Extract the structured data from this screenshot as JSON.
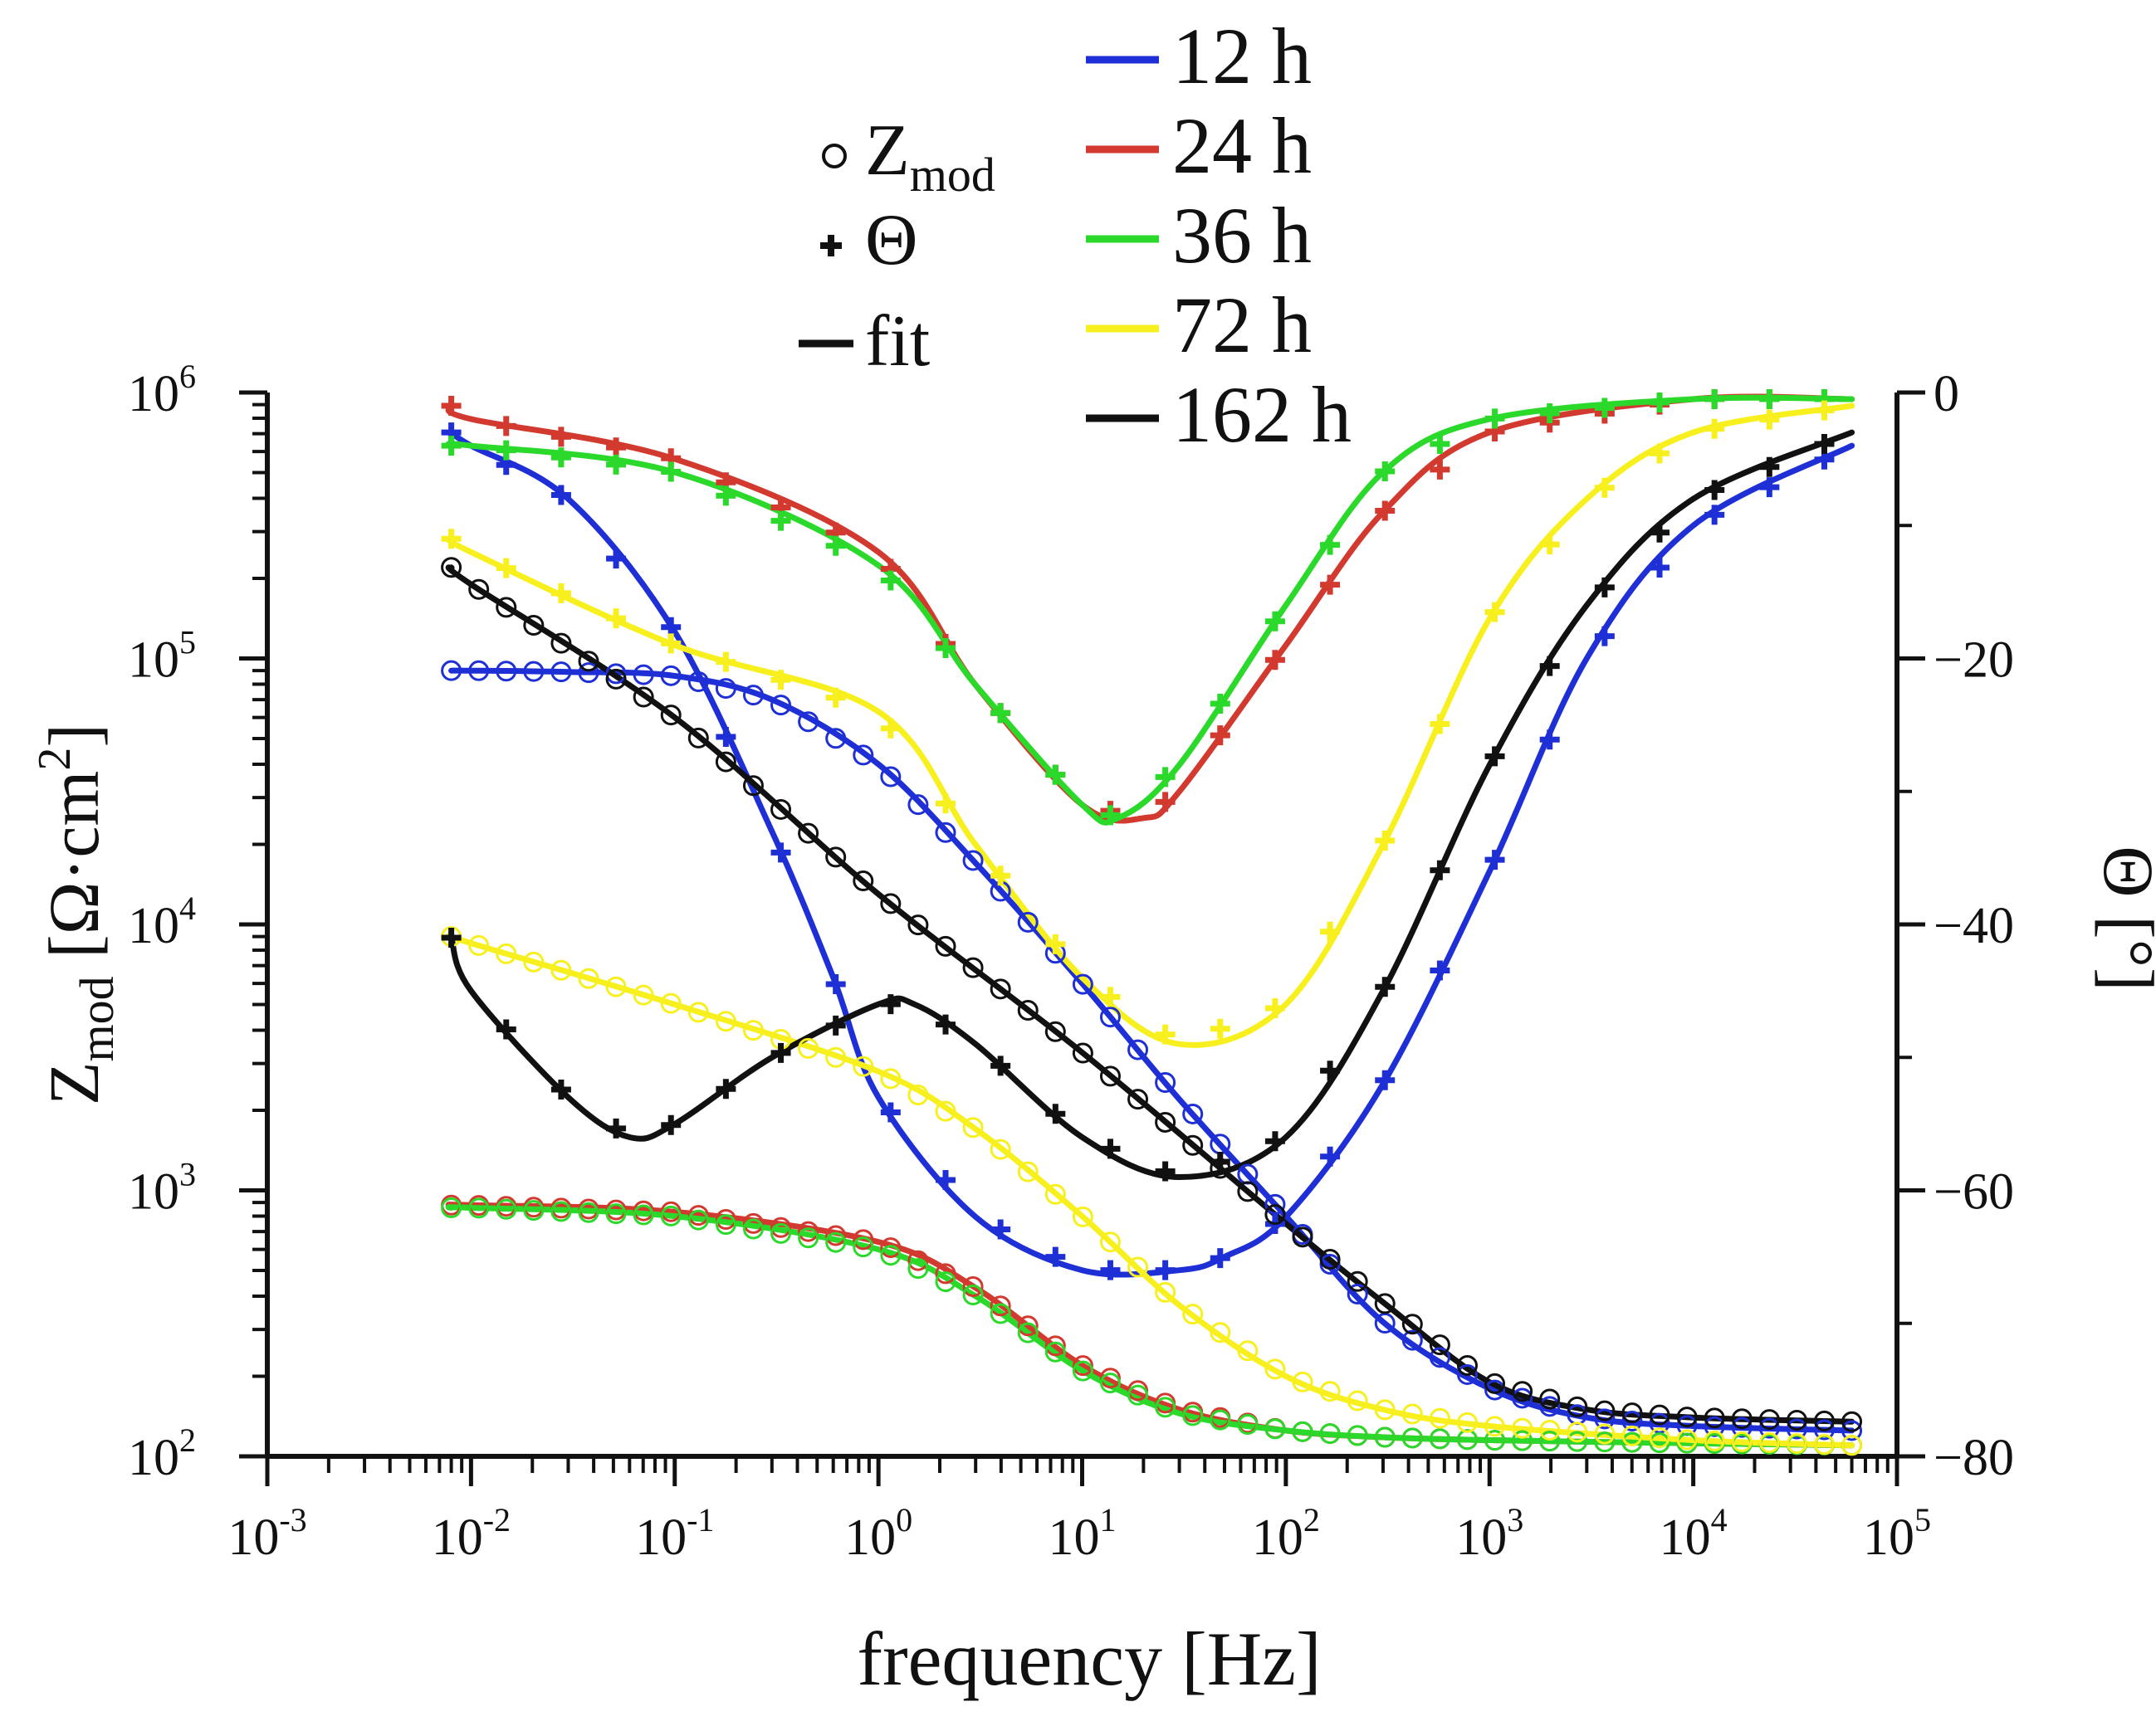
{
  "chart_data": {
    "type": "line",
    "xscale": "log",
    "xlim": [
      0.001,
      100000
    ],
    "ylim_left": [
      100,
      1000000
    ],
    "ylim_right": [
      -80,
      0
    ],
    "xlabel": "frequency [Hz]",
    "ylabel_left": {
      "main": "Z",
      "sub": "mod",
      "rest": " [Ω·cm",
      "sup": "2",
      "end": "]"
    },
    "ylabel_right": "Θ [°]",
    "x_ticks": [
      {
        "base": "10",
        "exp": "-3",
        "value": 0.001
      },
      {
        "base": "10",
        "exp": "-2",
        "value": 0.01
      },
      {
        "base": "10",
        "exp": "-1",
        "value": 0.1
      },
      {
        "base": "10",
        "exp": "0",
        "value": 1
      },
      {
        "base": "10",
        "exp": "1",
        "value": 10
      },
      {
        "base": "10",
        "exp": "2",
        "value": 100
      },
      {
        "base": "10",
        "exp": "3",
        "value": 1000
      },
      {
        "base": "10",
        "exp": "4",
        "value": 10000
      },
      {
        "base": "10",
        "exp": "5",
        "value": 100000
      }
    ],
    "y_left_ticks": [
      {
        "base": "10",
        "exp": "2",
        "value": 100
      },
      {
        "base": "10",
        "exp": "3",
        "value": 1000
      },
      {
        "base": "10",
        "exp": "4",
        "value": 10000
      },
      {
        "base": "10",
        "exp": "5",
        "value": 100000
      },
      {
        "base": "10",
        "exp": "6",
        "value": 1000000
      }
    ],
    "y_right_ticks": [
      {
        "label": "0",
        "value": 0
      },
      {
        "label": "−20",
        "value": -20
      },
      {
        "label": "−40",
        "value": -40
      },
      {
        "label": "−60",
        "value": -60
      },
      {
        "label": "−80",
        "value": -80
      }
    ],
    "legend_markers": [
      {
        "symbol": "circle",
        "text": "Z",
        "sub": "mod"
      },
      {
        "symbol": "plus",
        "text": "Θ",
        "sub": ""
      },
      {
        "symbol": "line",
        "text": "fit",
        "sub": ""
      }
    ],
    "legend_series": [
      {
        "label": "12 h",
        "color": "#1f2fd6"
      },
      {
        "label": "24 h",
        "color": "#d23a2f"
      },
      {
        "label": "36 h",
        "color": "#2bd92b"
      },
      {
        "label": "72 h",
        "color": "#f7f01e"
      },
      {
        "label": "162 h",
        "color": "#111111"
      }
    ],
    "series": [
      {
        "name": "12 h",
        "color": "#1f2fd6",
        "zmod": {
          "freq": [
            0.008,
            0.01,
            0.03,
            0.1,
            0.3,
            1,
            3,
            10,
            30,
            100,
            300,
            1000,
            3000,
            10000,
            60000
          ],
          "values": [
            90000,
            90000,
            89000,
            86000,
            70000,
            40000,
            17000,
            6000,
            2200,
            800,
            320,
            180,
            140,
            130,
            125
          ]
        },
        "phase": {
          "freq": [
            0.008,
            0.01,
            0.03,
            0.1,
            0.3,
            0.6,
            1,
            3,
            10,
            30,
            50,
            100,
            300,
            1000,
            3000,
            10000,
            60000
          ],
          "values": [
            -3,
            -4,
            -8,
            -18,
            -33,
            -44,
            -53,
            -62,
            -66,
            -66,
            -65,
            -62,
            -52,
            -36,
            -20,
            -10,
            -4
          ]
        }
      },
      {
        "name": "24 h",
        "color": "#d23a2f",
        "zmod": {
          "freq": [
            0.008,
            0.01,
            0.1,
            1,
            3,
            10,
            30,
            100,
            300,
            1000,
            10000,
            60000
          ],
          "values": [
            880,
            880,
            830,
            640,
            430,
            220,
            150,
            125,
            118,
            115,
            112,
            110
          ]
        },
        "phase": {
          "freq": [
            0.008,
            0.01,
            0.1,
            1,
            3,
            10,
            20,
            30,
            100,
            300,
            1000,
            10000,
            60000
          ],
          "values": [
            -1,
            -2,
            -5,
            -12,
            -22,
            -31,
            -32,
            -30,
            -19,
            -9,
            -3,
            -0.5,
            -0.5
          ]
        }
      },
      {
        "name": "36 h",
        "color": "#2bd92b",
        "zmod": {
          "freq": [
            0.008,
            0.01,
            0.1,
            1,
            3,
            10,
            30,
            100,
            300,
            1000,
            10000,
            60000
          ],
          "values": [
            860,
            860,
            800,
            600,
            400,
            210,
            145,
            125,
            118,
            115,
            112,
            110
          ]
        },
        "phase": {
          "freq": [
            0.008,
            0.01,
            0.1,
            1,
            3,
            10,
            15,
            30,
            100,
            300,
            1000,
            10000,
            60000
          ],
          "values": [
            -4,
            -4,
            -6,
            -13,
            -22,
            -31,
            -32,
            -28,
            -16,
            -6,
            -2,
            -0.5,
            -0.5
          ]
        }
      },
      {
        "name": "72 h",
        "color": "#f7f01e",
        "zmod": {
          "freq": [
            0.008,
            0.01,
            0.1,
            1,
            3,
            10,
            30,
            100,
            300,
            1000,
            10000,
            60000
          ],
          "values": [
            9000,
            8500,
            5000,
            2800,
            1700,
            800,
            370,
            200,
            150,
            130,
            115,
            110
          ]
        },
        "phase": {
          "freq": [
            0.008,
            0.01,
            0.1,
            1,
            3,
            10,
            30,
            100,
            300,
            1000,
            3000,
            10000,
            60000
          ],
          "values": [
            -11,
            -12,
            -19,
            -24,
            -34,
            -44,
            -49,
            -46,
            -34,
            -17,
            -8,
            -3,
            -1
          ]
        }
      },
      {
        "name": "162 h",
        "color": "#111111",
        "zmod": {
          "freq": [
            0.008,
            0.01,
            0.1,
            1,
            10,
            100,
            300,
            1000,
            3000,
            10000,
            60000
          ],
          "values": [
            220000,
            190000,
            60000,
            13000,
            3300,
            750,
            380,
            190,
            150,
            140,
            135
          ]
        },
        "phase": {
          "freq": [
            0.008,
            0.01,
            0.03,
            0.06,
            0.1,
            0.3,
            1,
            1.5,
            3,
            10,
            30,
            100,
            300,
            1000,
            3000,
            10000,
            60000
          ],
          "values": [
            -41,
            -45,
            -53,
            -56,
            -55,
            -50,
            -46,
            -46,
            -49,
            -56,
            -59,
            -56,
            -45,
            -28,
            -16,
            -8,
            -3
          ]
        }
      }
    ]
  }
}
